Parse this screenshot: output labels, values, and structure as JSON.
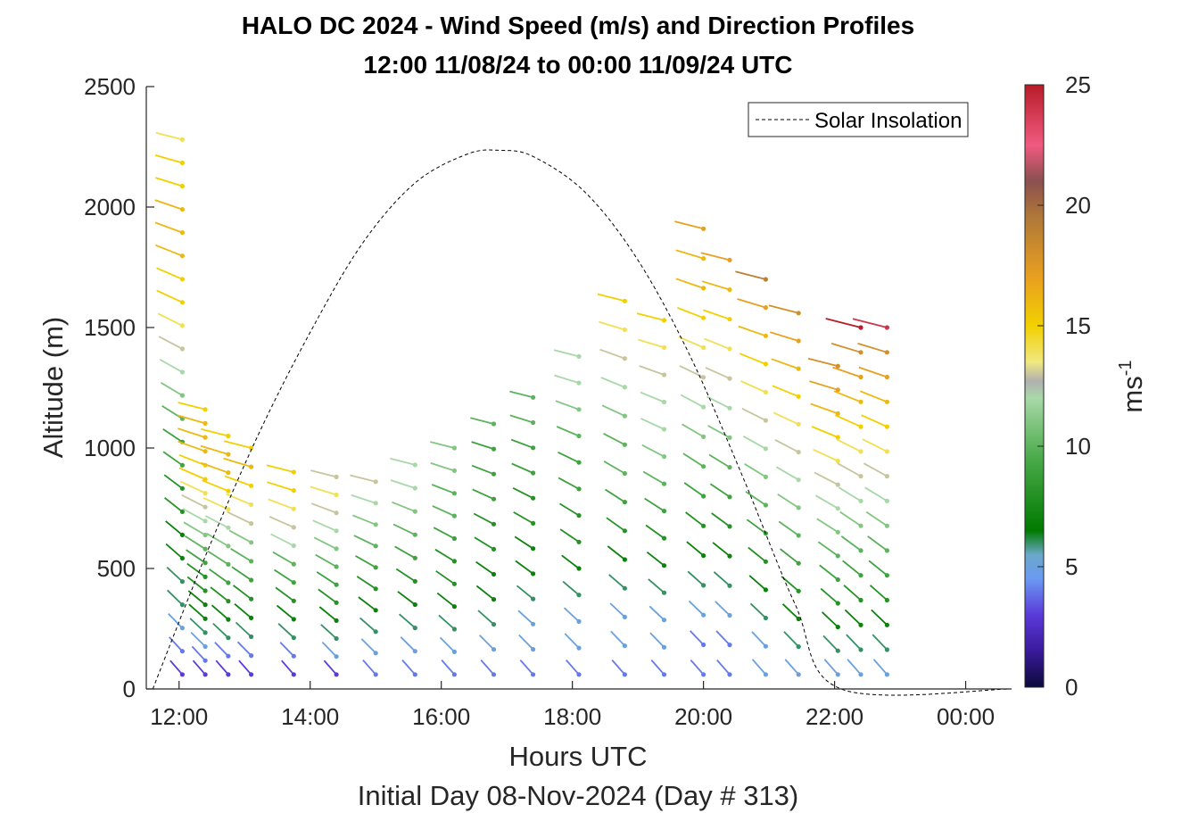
{
  "chart_data": {
    "type": "barbs",
    "title": "HALO DC 2024 - Wind Speed (m/s) and Direction Profiles",
    "subtitle": "12:00 11/08/24 to 00:00 11/09/24  UTC",
    "xlabel": "Hours UTC",
    "ylabel": "Altitude (m)",
    "footer": "Initial Day 08-Nov-2024 (Day # 313)",
    "xlim": [
      11.5,
      24.7
    ],
    "ylim": [
      0,
      2500
    ],
    "xticks": [
      12,
      14,
      16,
      18,
      20,
      22,
      24
    ],
    "xtick_labels": [
      "12:00",
      "14:00",
      "16:00",
      "18:00",
      "20:00",
      "22:00",
      "00:00"
    ],
    "yticks": [
      0,
      500,
      1000,
      1500,
      2000,
      2500
    ],
    "ytick_labels": [
      "0",
      "500",
      "1000",
      "1500",
      "2000",
      "2500"
    ],
    "colorbar": {
      "label": "ms",
      "label_superscript": "-1",
      "range": [
        0,
        25
      ],
      "ticks": [
        0,
        5,
        10,
        15,
        20,
        25
      ],
      "tick_labels": [
        "0",
        "5",
        "10",
        "15",
        "20",
        "25"
      ],
      "stops": [
        {
          "v": 0,
          "c": "#0a0a3a"
        },
        {
          "v": 1.5,
          "c": "#3a1a9a"
        },
        {
          "v": 3,
          "c": "#5a3ad8"
        },
        {
          "v": 4.5,
          "c": "#6a9af2"
        },
        {
          "v": 5.5,
          "c": "#6aa8c8"
        },
        {
          "v": 6.5,
          "c": "#007a00"
        },
        {
          "v": 9.5,
          "c": "#4aaa4a"
        },
        {
          "v": 12,
          "c": "#a8d8a8"
        },
        {
          "v": 12.7,
          "c": "#b0b0b0"
        },
        {
          "v": 13.5,
          "c": "#f0e880"
        },
        {
          "v": 15,
          "c": "#f2d000"
        },
        {
          "v": 17,
          "c": "#e8a020"
        },
        {
          "v": 19.5,
          "c": "#b07838"
        },
        {
          "v": 21,
          "c": "#8a5050"
        },
        {
          "v": 22.5,
          "c": "#f05a80"
        },
        {
          "v": 25,
          "c": "#b81c28"
        }
      ]
    },
    "legend": {
      "label": "Solar Insolation",
      "placement": "top-right",
      "style": "dashed black"
    },
    "solar_insolation_curve": {
      "x": [
        11.6,
        12.4,
        13.2,
        14.0,
        14.8,
        15.6,
        16.4,
        16.9,
        17.4,
        18.2,
        19.0,
        19.8,
        20.6,
        21.4,
        22.1,
        24.7
      ],
      "y": [
        0,
        550,
        1050,
        1480,
        1850,
        2100,
        2220,
        2235,
        2210,
        2060,
        1780,
        1380,
        880,
        350,
        0,
        0
      ]
    },
    "barb_profiles": [
      {
        "x": 12.05,
        "top_alt": 2280,
        "dir": -1,
        "speeds": [
          3,
          4,
          5,
          6,
          6,
          7,
          7,
          8,
          8,
          9,
          9,
          10,
          11,
          12,
          13,
          14,
          15,
          15,
          16,
          16,
          16,
          15,
          15,
          14
        ]
      },
      {
        "x": 12.4,
        "top_alt": 1160,
        "dir": -1,
        "speeds": [
          3,
          4,
          5,
          6,
          7,
          7,
          8,
          8,
          9,
          10,
          11,
          12,
          13,
          14,
          15,
          15,
          16,
          16,
          16,
          15
        ]
      },
      {
        "x": 12.75,
        "top_alt": 1050,
        "dir": -1,
        "speeds": [
          3,
          4,
          6,
          7,
          8,
          9,
          10,
          11,
          12,
          14,
          15,
          16,
          16,
          15
        ]
      },
      {
        "x": 13.1,
        "top_alt": 1000,
        "dir": -1,
        "speeds": [
          3,
          4,
          6,
          7,
          8,
          9,
          10,
          11,
          13,
          14,
          15,
          16,
          15
        ]
      },
      {
        "x": 13.75,
        "top_alt": 900,
        "dir": -1,
        "speeds": [
          3,
          4,
          6,
          7,
          8,
          9,
          10,
          12,
          13,
          14,
          15,
          15
        ]
      },
      {
        "x": 14.4,
        "top_alt": 880,
        "dir": -1,
        "speeds": [
          3,
          5,
          6,
          7,
          8,
          9,
          10,
          11,
          12,
          13,
          14,
          13
        ]
      },
      {
        "x": 15.0,
        "top_alt": 860,
        "dir": -1,
        "speeds": [
          4,
          5,
          6,
          7,
          8,
          9,
          10,
          11,
          12,
          13
        ]
      },
      {
        "x": 15.6,
        "top_alt": 930,
        "dir": -1,
        "speeds": [
          4,
          5,
          6,
          7,
          8,
          9,
          10,
          11,
          12,
          12
        ]
      },
      {
        "x": 16.2,
        "top_alt": 1000,
        "dir": -1,
        "speeds": [
          4,
          5,
          6,
          7,
          8,
          8,
          9,
          10,
          10,
          11,
          11
        ]
      },
      {
        "x": 16.8,
        "top_alt": 1100,
        "dir": -1,
        "speeds": [
          4,
          5,
          6,
          7,
          7,
          8,
          8,
          9,
          9,
          9,
          10
        ]
      },
      {
        "x": 17.4,
        "top_alt": 1210,
        "dir": -1,
        "speeds": [
          4,
          5,
          5,
          6,
          7,
          7,
          8,
          8,
          9,
          9,
          10,
          10
        ]
      },
      {
        "x": 18.1,
        "top_alt": 1380,
        "dir": -1,
        "speeds": [
          4,
          5,
          5,
          6,
          7,
          8,
          8,
          9,
          9,
          10,
          11,
          12,
          12
        ]
      },
      {
        "x": 18.8,
        "top_alt": 1610,
        "dir": -1,
        "speeds": [
          4,
          5,
          5,
          6,
          7,
          8,
          9,
          10,
          10,
          11,
          12,
          13,
          14,
          15
        ]
      },
      {
        "x": 19.4,
        "top_alt": 1530,
        "dir": -1,
        "speeds": [
          4,
          5,
          5,
          6,
          7,
          8,
          9,
          10,
          11,
          12,
          12,
          13,
          14,
          15
        ]
      },
      {
        "x": 20.0,
        "top_alt": 1910,
        "dir": -1,
        "speeds": [
          4,
          4,
          5,
          6,
          7,
          8,
          9,
          10,
          11,
          12,
          13,
          14,
          15,
          16,
          16,
          17
        ]
      },
      {
        "x": 20.4,
        "top_alt": 1780,
        "dir": -1,
        "speeds": [
          4,
          4,
          5,
          6,
          7,
          8,
          9,
          10,
          11,
          12,
          13,
          14,
          15,
          16,
          17
        ]
      },
      {
        "x": 20.95,
        "top_alt": 1700,
        "dir": -1,
        "speeds": [
          5,
          5,
          6,
          7,
          8,
          9,
          10,
          11,
          12,
          13,
          14,
          15,
          16,
          17,
          19
        ]
      },
      {
        "x": 21.45,
        "top_alt": 1560,
        "dir": -1,
        "speeds": [
          5,
          6,
          7,
          8,
          9,
          10,
          11,
          12,
          13,
          14,
          15,
          16,
          17,
          18
        ]
      },
      {
        "x": 22.05,
        "top_alt": 1340,
        "dir": -1,
        "speeds": [
          5,
          6,
          7,
          8,
          9,
          10,
          11,
          12,
          13,
          14,
          15,
          16,
          17,
          18
        ]
      },
      {
        "x": 22.4,
        "top_alt": 1500,
        "dir": -1,
        "speeds": [
          5,
          6,
          7,
          8,
          9,
          10,
          11,
          12,
          13,
          14,
          15,
          16,
          17,
          18,
          25
        ]
      },
      {
        "x": 22.8,
        "top_alt": 1500,
        "dir": -1,
        "speeds": [
          5,
          6,
          7,
          8,
          9,
          10,
          11,
          12,
          13,
          14,
          15,
          16,
          17,
          18,
          24
        ]
      }
    ]
  }
}
